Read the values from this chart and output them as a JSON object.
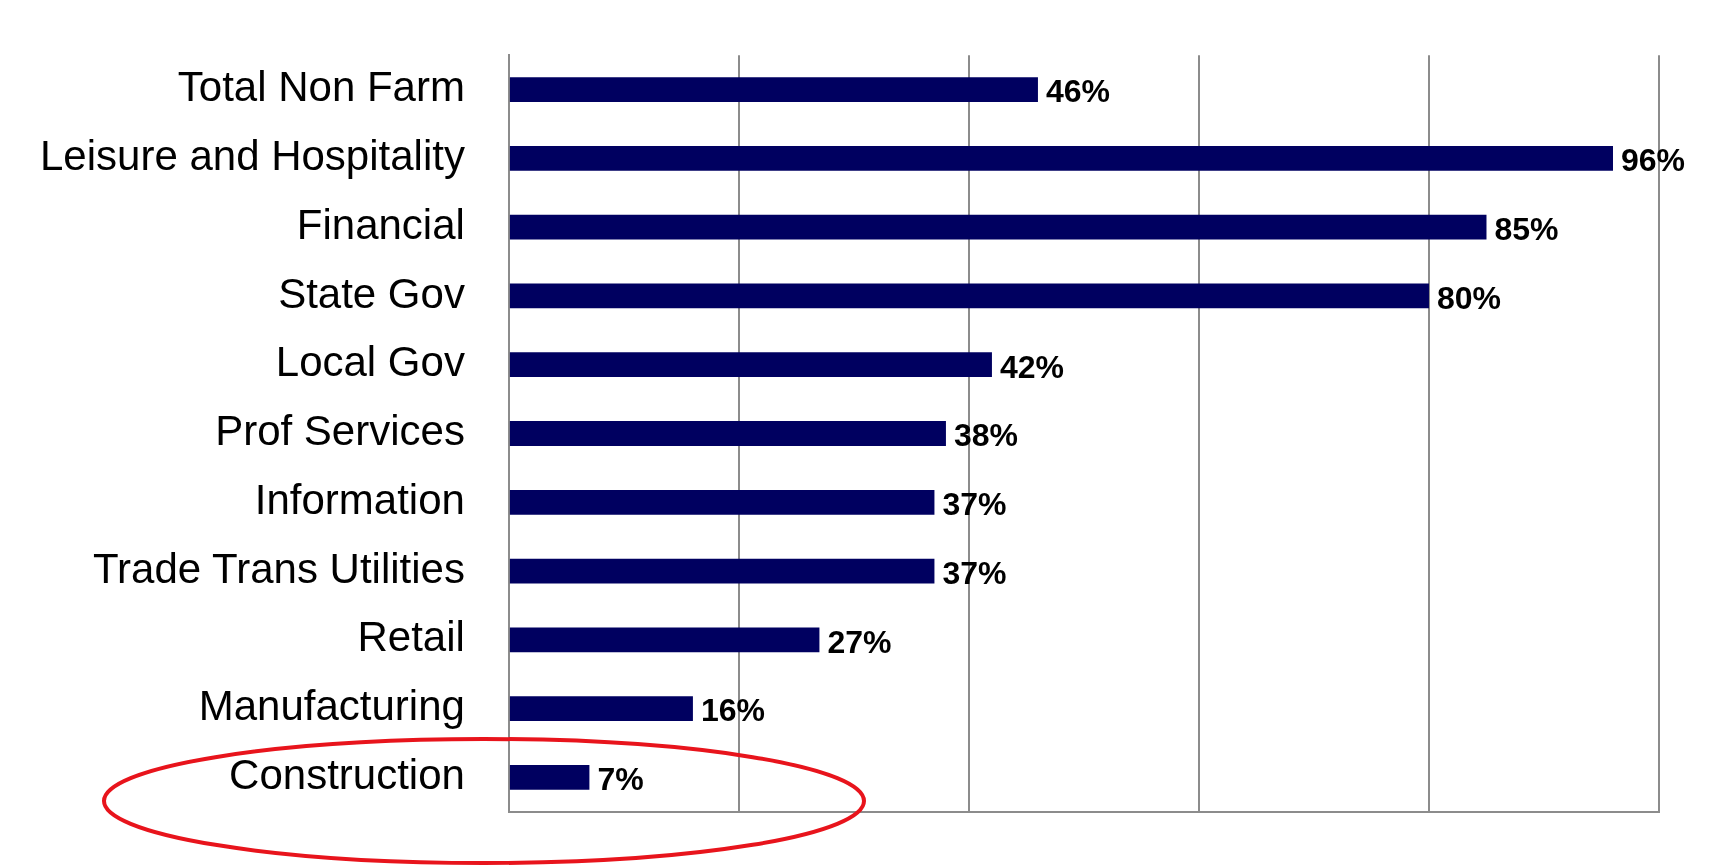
{
  "chart_data": {
    "type": "bar",
    "orientation": "horizontal",
    "categories": [
      "Total Non Farm",
      "Leisure and Hospitality",
      "Financial",
      "State Gov",
      "Local Gov",
      "Prof Services",
      "Information",
      "Trade Trans Utilities",
      "Retail",
      "Manufacturing",
      "Construction"
    ],
    "values": [
      46,
      96,
      85,
      80,
      42,
      38,
      37,
      37,
      27,
      16,
      7
    ],
    "value_labels": [
      "46%",
      "96%",
      "85%",
      "80%",
      "42%",
      "38%",
      "37%",
      "37%",
      "27%",
      "16%",
      "7%"
    ],
    "color": "#000060",
    "xlim": [
      0,
      100
    ],
    "xticks": [
      {
        "value": 0,
        "label": null
      },
      {
        "value": 20,
        "label": null
      },
      {
        "value": 40,
        "label": null
      },
      {
        "value": 60,
        "label": null
      },
      {
        "value": 80,
        "label": null
      },
      {
        "value": 100,
        "label": null
      }
    ],
    "grid": "x",
    "tick_labels": "y",
    "legend": false
  }
}
